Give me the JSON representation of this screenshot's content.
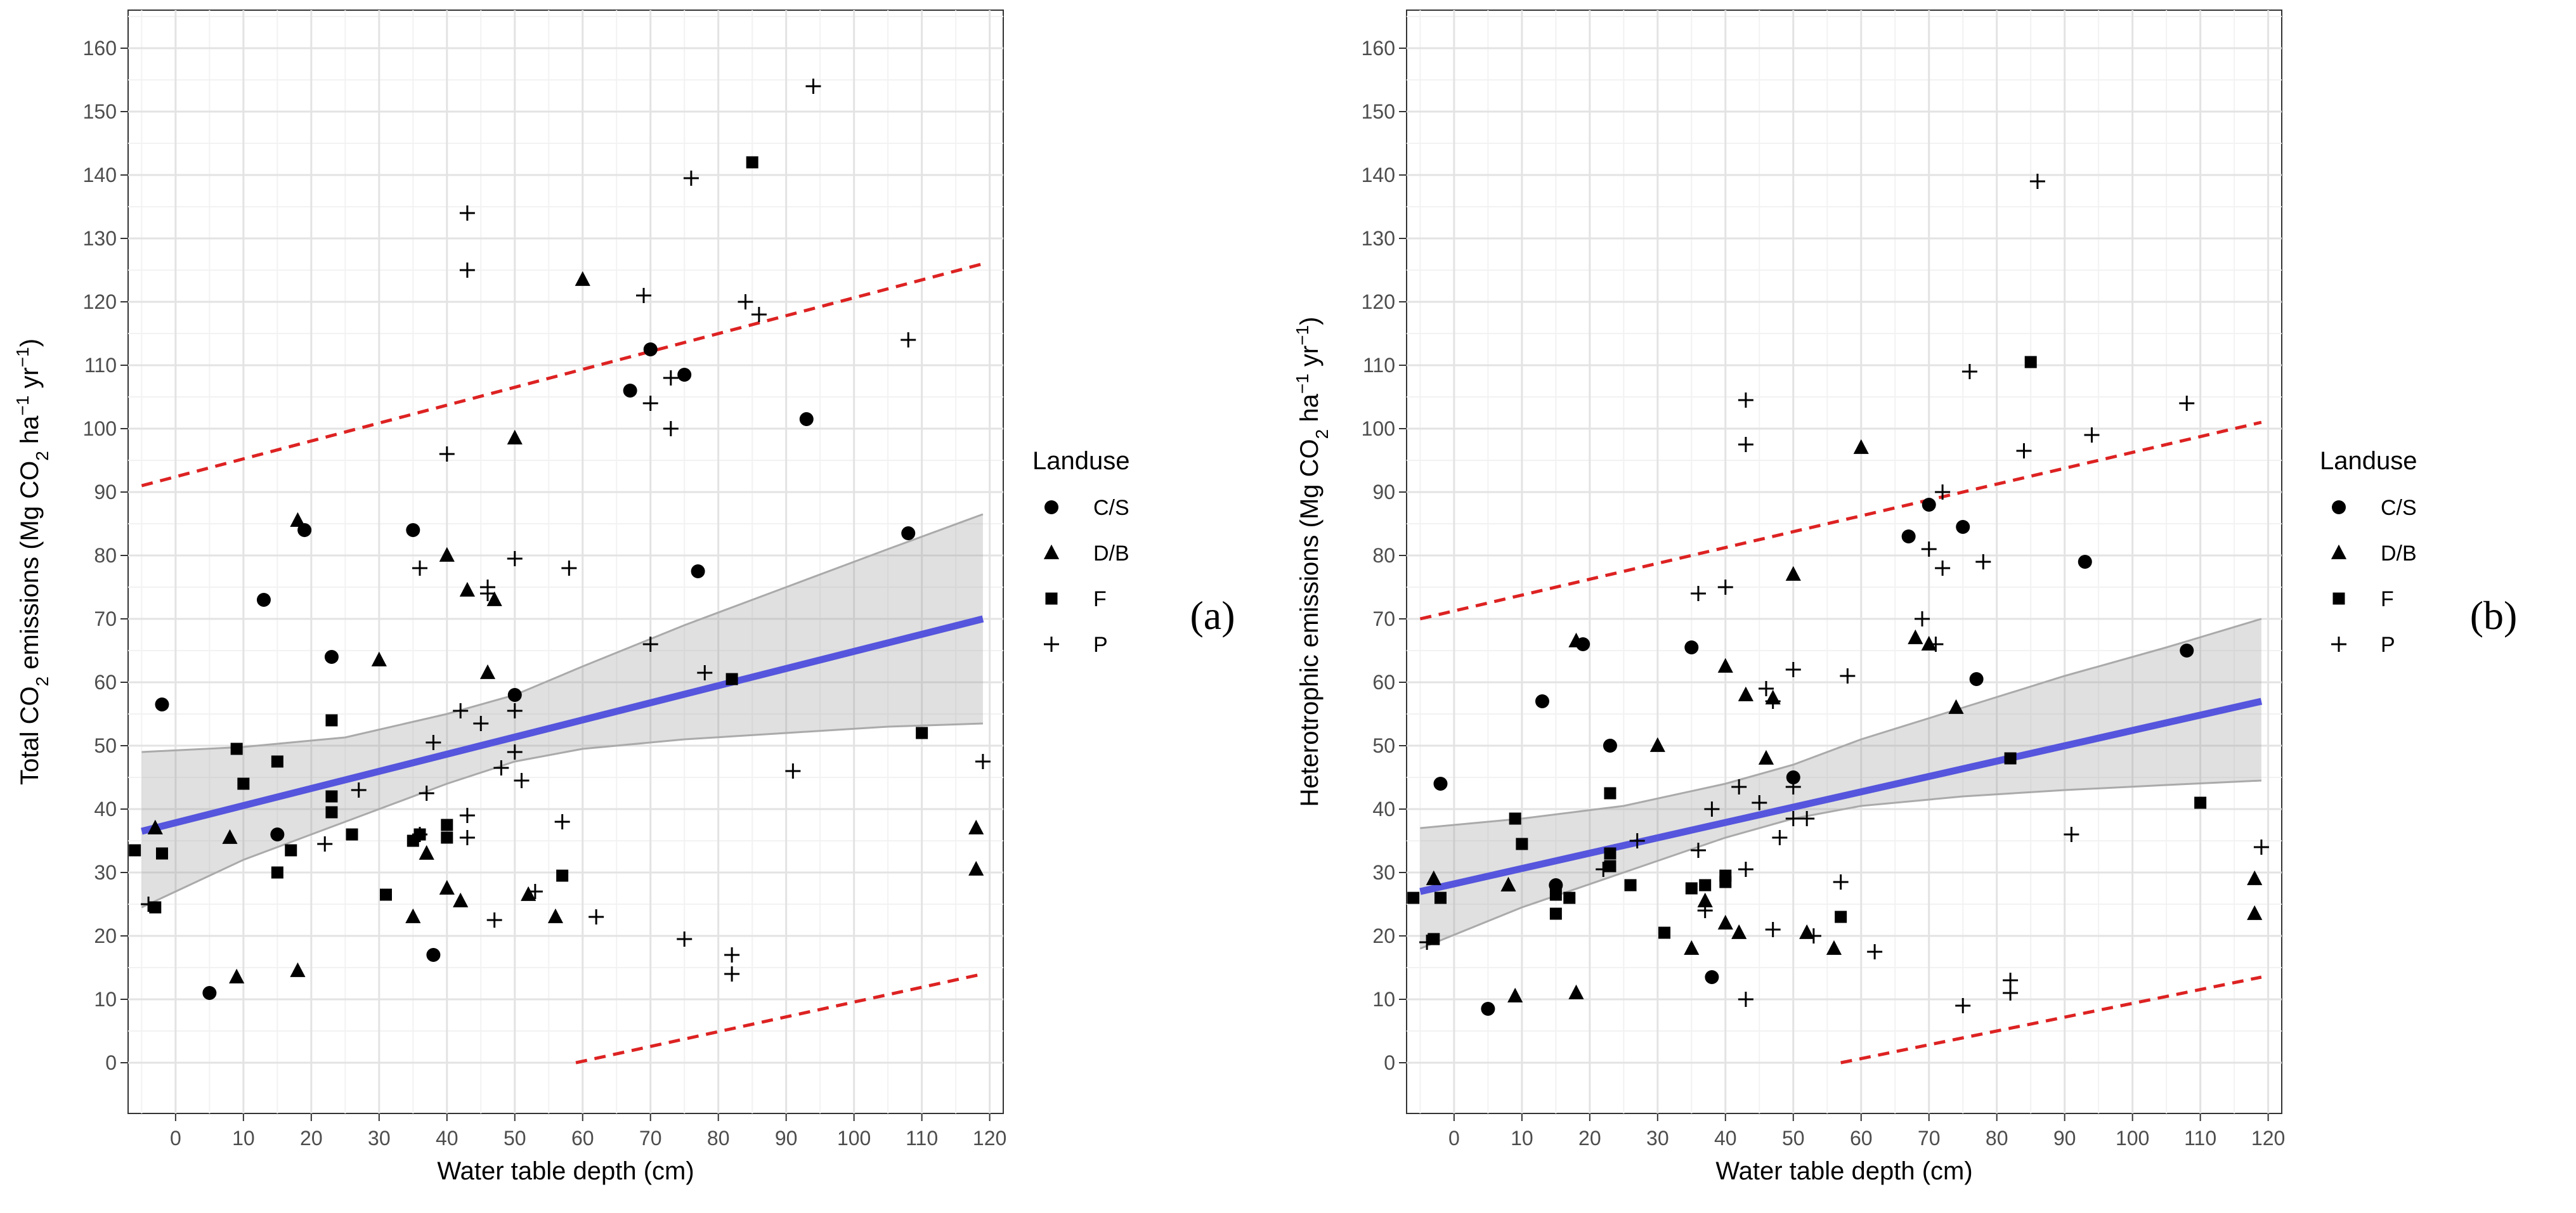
{
  "chart_data": [
    {
      "type": "scatter",
      "panel_label": "(a)",
      "xlabel": "Water table depth (cm)",
      "ylabel_parts": [
        "Total CO",
        "2",
        " emissions (Mg CO",
        "2",
        " ha",
        "−1",
        " yr",
        "−1",
        ")"
      ],
      "xlim": [
        -7,
        122
      ],
      "ylim": [
        -8,
        166
      ],
      "xticks": [
        0,
        10,
        20,
        30,
        40,
        50,
        60,
        70,
        80,
        90,
        100,
        110,
        120
      ],
      "yticks": [
        0,
        10,
        20,
        30,
        40,
        50,
        60,
        70,
        80,
        90,
        100,
        110,
        120,
        130,
        140,
        150,
        160
      ],
      "grid": true,
      "legend_title": "Landuse",
      "legend": [
        "C/S",
        "D/B",
        "F",
        "P"
      ],
      "regression_line": {
        "x": [
          -5,
          119
        ],
        "y": [
          36.5,
          70.0
        ],
        "color": "#5555dd"
      },
      "confidence_band": {
        "x": [
          -5,
          10,
          25,
          40,
          50,
          60,
          75,
          90,
          105,
          119
        ],
        "lower": [
          24.5,
          32,
          38,
          44,
          47.5,
          49.5,
          51,
          52,
          53,
          53.5
        ],
        "upper": [
          49,
          49.8,
          51.3,
          55,
          58,
          62.5,
          69,
          75,
          81,
          86.5
        ]
      },
      "prediction_upper": {
        "x": [
          -5,
          119
        ],
        "y": [
          91,
          126
        ],
        "color": "#dd2222"
      },
      "prediction_lower": {
        "x": [
          59,
          119
        ],
        "y": [
          0,
          14
        ],
        "color": "#dd2222"
      },
      "series": [
        {
          "name": "C/S",
          "shape": "circle",
          "points": [
            [
              -2,
              56.5
            ],
            [
              5,
              11
            ],
            [
              13,
              73
            ],
            [
              15,
              36
            ],
            [
              19,
              84
            ],
            [
              23,
              64
            ],
            [
              35,
              84
            ],
            [
              38,
              17
            ],
            [
              50,
              58
            ],
            [
              67,
              106
            ],
            [
              70,
              112.5
            ],
            [
              75,
              108.5
            ],
            [
              77,
              77.5
            ],
            [
              93,
              101.5
            ],
            [
              108,
              83.5
            ]
          ]
        },
        {
          "name": "D/B",
          "shape": "triangle",
          "points": [
            [
              -3,
              37
            ],
            [
              8,
              35.5
            ],
            [
              9,
              13.5
            ],
            [
              18,
              85.5
            ],
            [
              18,
              14.5
            ],
            [
              30,
              63.5
            ],
            [
              35,
              23
            ],
            [
              37,
              33
            ],
            [
              40,
              27.5
            ],
            [
              40,
              80
            ],
            [
              42,
              25.5
            ],
            [
              43,
              74.5
            ],
            [
              46,
              61.5
            ],
            [
              47,
              73
            ],
            [
              50,
              98.5
            ],
            [
              52,
              26.5
            ],
            [
              56,
              23
            ],
            [
              60,
              123.5
            ],
            [
              118,
              37
            ],
            [
              118,
              30.5
            ]
          ]
        },
        {
          "name": "F",
          "shape": "square",
          "points": [
            [
              -6,
              33.5
            ],
            [
              -3,
              24.5
            ],
            [
              -2,
              33
            ],
            [
              9,
              49.5
            ],
            [
              10,
              44
            ],
            [
              15,
              47.5
            ],
            [
              15,
              30
            ],
            [
              17,
              33.5
            ],
            [
              23,
              54
            ],
            [
              23,
              42
            ],
            [
              23,
              39.5
            ],
            [
              26,
              36
            ],
            [
              31,
              26.5
            ],
            [
              35,
              35
            ],
            [
              36,
              36
            ],
            [
              40,
              37.5
            ],
            [
              40,
              35.5
            ],
            [
              57,
              29.5
            ],
            [
              85,
              142
            ],
            [
              82,
              60.5
            ],
            [
              110,
              52
            ]
          ]
        },
        {
          "name": "P",
          "shape": "plus",
          "points": [
            [
              -4,
              25
            ],
            [
              22,
              34.5
            ],
            [
              27,
              43
            ],
            [
              36,
              36
            ],
            [
              36,
              78
            ],
            [
              37,
              42.5
            ],
            [
              38,
              50.5
            ],
            [
              40,
              96
            ],
            [
              42,
              55.5
            ],
            [
              43,
              134
            ],
            [
              43,
              125
            ],
            [
              43,
              39
            ],
            [
              43,
              35.5
            ],
            [
              45,
              53.5
            ],
            [
              46,
              75
            ],
            [
              46,
              74
            ],
            [
              47,
              22.5
            ],
            [
              48,
              46.5
            ],
            [
              50,
              79.5
            ],
            [
              50,
              55.5
            ],
            [
              50,
              49
            ],
            [
              51,
              44.5
            ],
            [
              53,
              27
            ],
            [
              57,
              38
            ],
            [
              58,
              78
            ],
            [
              62,
              23
            ],
            [
              69,
              121
            ],
            [
              70,
              104
            ],
            [
              70,
              66
            ],
            [
              73,
              100
            ],
            [
              73,
              108
            ],
            [
              75,
              19.5
            ],
            [
              76,
              139.5
            ],
            [
              78,
              61.5
            ],
            [
              82,
              17
            ],
            [
              82,
              14
            ],
            [
              84,
              120
            ],
            [
              86,
              118
            ],
            [
              91,
              46
            ],
            [
              94,
              154
            ],
            [
              108,
              114
            ],
            [
              119,
              47.5
            ]
          ]
        }
      ]
    },
    {
      "type": "scatter",
      "panel_label": "(b)",
      "xlabel": "Water table depth (cm)",
      "ylabel_parts": [
        "Heterotrophic emissions (Mg CO",
        "2",
        " ha",
        "−1",
        " yr",
        "−1",
        ")"
      ],
      "xlim": [
        -7,
        122
      ],
      "ylim": [
        -8,
        166
      ],
      "xticks": [
        0,
        10,
        20,
        30,
        40,
        50,
        60,
        70,
        80,
        90,
        100,
        110,
        120
      ],
      "yticks": [
        0,
        10,
        20,
        30,
        40,
        50,
        60,
        70,
        80,
        90,
        100,
        110,
        120,
        130,
        140,
        150,
        160
      ],
      "grid": true,
      "legend_title": "Landuse",
      "legend": [
        "C/S",
        "D/B",
        "F",
        "P"
      ],
      "regression_line": {
        "x": [
          -5,
          119
        ],
        "y": [
          27.0,
          57.0
        ],
        "color": "#5555dd"
      },
      "confidence_band": {
        "x": [
          -5,
          10,
          25,
          40,
          50,
          60,
          75,
          90,
          105,
          119
        ],
        "lower": [
          18,
          24.5,
          30,
          35.5,
          38.5,
          40.5,
          42,
          43,
          43.8,
          44.5
        ],
        "upper": [
          37,
          38.5,
          40.5,
          44,
          47,
          51,
          56,
          61,
          65.5,
          70
        ]
      },
      "prediction_upper": {
        "x": [
          -5,
          119
        ],
        "y": [
          70,
          101
        ],
        "color": "#dd2222"
      },
      "prediction_lower": {
        "x": [
          57,
          119
        ],
        "y": [
          0,
          13.5
        ],
        "color": "#dd2222"
      },
      "series": [
        {
          "name": "C/S",
          "shape": "circle",
          "points": [
            [
              -2,
              44
            ],
            [
              5,
              8.5
            ],
            [
              13,
              57
            ],
            [
              15,
              28
            ],
            [
              19,
              66
            ],
            [
              23,
              50
            ],
            [
              35,
              65.5
            ],
            [
              38,
              13.5
            ],
            [
              50,
              45
            ],
            [
              67,
              83
            ],
            [
              70,
              88
            ],
            [
              75,
              84.5
            ],
            [
              77,
              60.5
            ],
            [
              93,
              79
            ],
            [
              108,
              65
            ]
          ]
        },
        {
          "name": "D/B",
          "shape": "triangle",
          "points": [
            [
              -3,
              29
            ],
            [
              8,
              28
            ],
            [
              9,
              10.5
            ],
            [
              18,
              66.5
            ],
            [
              18,
              11
            ],
            [
              30,
              50
            ],
            [
              35,
              18
            ],
            [
              37,
              25.5
            ],
            [
              40,
              22
            ],
            [
              40,
              62.5
            ],
            [
              42,
              20.5
            ],
            [
              43,
              58
            ],
            [
              46,
              48
            ],
            [
              47,
              57.5
            ],
            [
              50,
              77
            ],
            [
              52,
              20.5
            ],
            [
              56,
              18
            ],
            [
              60,
              97
            ],
            [
              68,
              67
            ],
            [
              70,
              66
            ],
            [
              74,
              56
            ],
            [
              118,
              29
            ],
            [
              118,
              23.5
            ]
          ]
        },
        {
          "name": "F",
          "shape": "square",
          "points": [
            [
              -6,
              26
            ],
            [
              -3,
              19.5
            ],
            [
              -2,
              26
            ],
            [
              9,
              38.5
            ],
            [
              10,
              34.5
            ],
            [
              15,
              26.5
            ],
            [
              15,
              23.5
            ],
            [
              17,
              26
            ],
            [
              23,
              42.5
            ],
            [
              23,
              33
            ],
            [
              23,
              31
            ],
            [
              26,
              28
            ],
            [
              31,
              20.5
            ],
            [
              35,
              27.5
            ],
            [
              37,
              28
            ],
            [
              40,
              29.5
            ],
            [
              40,
              28.5
            ],
            [
              57,
              23
            ],
            [
              85,
              110.5
            ],
            [
              82,
              48
            ],
            [
              110,
              41
            ]
          ]
        },
        {
          "name": "P",
          "shape": "plus",
          "points": [
            [
              -4,
              19
            ],
            [
              22,
              30.5
            ],
            [
              27,
              35
            ],
            [
              36,
              33.5
            ],
            [
              36,
              74
            ],
            [
              37,
              24
            ],
            [
              38,
              40
            ],
            [
              40,
              75
            ],
            [
              42,
              43.5
            ],
            [
              43,
              104.5
            ],
            [
              43,
              97.5
            ],
            [
              43,
              30.5
            ],
            [
              43,
              10
            ],
            [
              45,
              41
            ],
            [
              46,
              59
            ],
            [
              47,
              57
            ],
            [
              47,
              21
            ],
            [
              48,
              35.5
            ],
            [
              50,
              62
            ],
            [
              50,
              43.5
            ],
            [
              50,
              38.5
            ],
            [
              52,
              38.5
            ],
            [
              53,
              20
            ],
            [
              57,
              28.5
            ],
            [
              58,
              61
            ],
            [
              62,
              17.5
            ],
            [
              69,
              70
            ],
            [
              70,
              81
            ],
            [
              71,
              66
            ],
            [
              72,
              78
            ],
            [
              72,
              90
            ],
            [
              75,
              9
            ],
            [
              76,
              109
            ],
            [
              78,
              79
            ],
            [
              82,
              13
            ],
            [
              82,
              11
            ],
            [
              84,
              96.5
            ],
            [
              86,
              139
            ],
            [
              91,
              36
            ],
            [
              94,
              99
            ],
            [
              108,
              104
            ],
            [
              119,
              34
            ]
          ]
        }
      ]
    }
  ]
}
